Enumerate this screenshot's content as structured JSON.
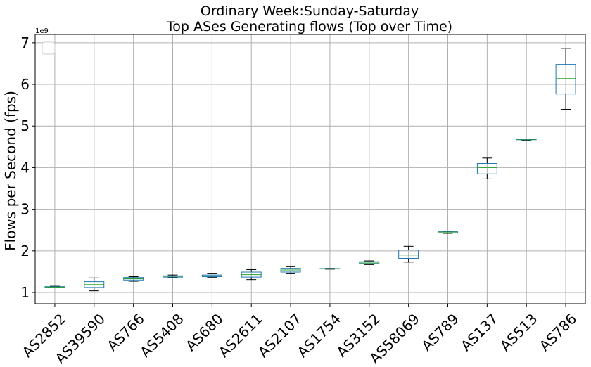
{
  "chart_data": {
    "type": "box",
    "title_lines": [
      "Ordinary Week:Sunday-Saturday",
      "Top ASes Generating flows (Top over Time)"
    ],
    "xlabel": "",
    "ylabel": "Flows per Second (fps)",
    "y_offset_text": "1e9",
    "y_scale": 1000000000,
    "ylim": [
      0.73,
      7.2
    ],
    "y_ticks": [
      1,
      2,
      3,
      4,
      5,
      6,
      7
    ],
    "grid": true,
    "legend": "top-left (empty)",
    "colors": {
      "box": "#1f77b4",
      "median": "#2ca02c",
      "whisker": "#000000",
      "grid": "#b0b0b0"
    },
    "categories": [
      "AS2852",
      "AS39590",
      "AS766",
      "AS5408",
      "AS680",
      "AS2611",
      "AS2107",
      "AS1754",
      "AS3152",
      "AS58069",
      "AS789",
      "AS137",
      "AS513",
      "AS786"
    ],
    "boxes": [
      {
        "whislo": 1.11,
        "q1": 1.12,
        "med": 1.13,
        "q3": 1.14,
        "whishi": 1.15
      },
      {
        "whislo": 1.04,
        "q1": 1.12,
        "med": 1.19,
        "q3": 1.26,
        "whishi": 1.35
      },
      {
        "whislo": 1.27,
        "q1": 1.3,
        "med": 1.33,
        "q3": 1.36,
        "whishi": 1.38
      },
      {
        "whislo": 1.36,
        "q1": 1.37,
        "med": 1.39,
        "q3": 1.4,
        "whishi": 1.42
      },
      {
        "whislo": 1.36,
        "q1": 1.38,
        "med": 1.4,
        "q3": 1.42,
        "whishi": 1.45
      },
      {
        "whislo": 1.31,
        "q1": 1.37,
        "med": 1.43,
        "q3": 1.49,
        "whishi": 1.55
      },
      {
        "whislo": 1.45,
        "q1": 1.49,
        "med": 1.54,
        "q3": 1.58,
        "whishi": 1.62
      },
      {
        "whislo": 1.56,
        "q1": 1.565,
        "med": 1.57,
        "q3": 1.575,
        "whishi": 1.58
      },
      {
        "whislo": 1.67,
        "q1": 1.69,
        "med": 1.71,
        "q3": 1.74,
        "whishi": 1.76
      },
      {
        "whislo": 1.73,
        "q1": 1.82,
        "med": 1.9,
        "q3": 2.02,
        "whishi": 2.11
      },
      {
        "whislo": 2.42,
        "q1": 2.43,
        "med": 2.45,
        "q3": 2.46,
        "whishi": 2.47
      },
      {
        "whislo": 3.73,
        "q1": 3.85,
        "med": 4.0,
        "q3": 4.1,
        "whishi": 4.23
      },
      {
        "whislo": 4.66,
        "q1": 4.67,
        "med": 4.68,
        "q3": 4.685,
        "whishi": 4.69
      },
      {
        "whislo": 5.4,
        "q1": 5.77,
        "med": 6.14,
        "q3": 6.48,
        "whishi": 6.86
      }
    ]
  }
}
